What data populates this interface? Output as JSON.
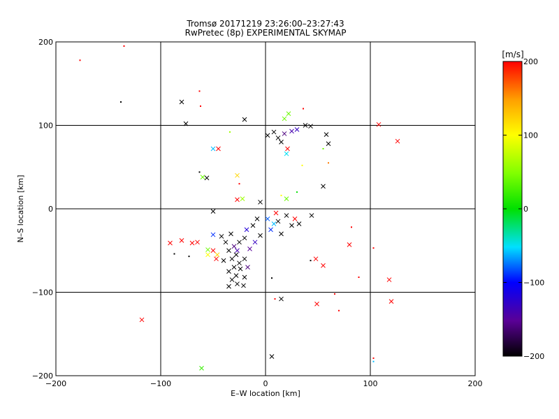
{
  "chart_data": {
    "type": "scatter",
    "title": "Tromsø 20171219 23:26:00–23:27:43",
    "subtitle": "RwPretec (8p) EXPERIMENTAL SKYMAP",
    "xlabel": "E–W location [km]",
    "ylabel": "N–S location [km]",
    "xlim": [
      -200,
      200
    ],
    "ylim": [
      -200,
      200
    ],
    "xticks": [
      -200,
      -100,
      0,
      100,
      200
    ],
    "yticks": [
      -200,
      -100,
      0,
      100,
      200
    ],
    "xtick_labels": [
      "−200",
      "−100",
      "0",
      "100",
      "200"
    ],
    "ytick_labels": [
      "−200",
      "−100",
      "0",
      "100",
      "200"
    ],
    "grid": true,
    "colorbar": {
      "label": "[m/s]",
      "min": -200,
      "max": 200,
      "ticks": [
        200,
        100,
        0,
        -100,
        -200
      ],
      "tick_labels": [
        "200",
        "100",
        "0",
        "−100",
        "−200"
      ],
      "colormap": "black-purple-blue-cyan-green-yellow-red"
    },
    "markers": [
      {
        "x": -177,
        "y": 178,
        "v": 200,
        "m": "dot"
      },
      {
        "x": -135,
        "y": 195,
        "v": 200,
        "m": "dot"
      },
      {
        "x": -138,
        "y": 128,
        "v": -200,
        "m": "dot"
      },
      {
        "x": -80,
        "y": 128,
        "v": -200,
        "m": "x"
      },
      {
        "x": -63,
        "y": 141,
        "v": 200,
        "m": "dot"
      },
      {
        "x": -62,
        "y": 123,
        "v": 200,
        "m": "dot"
      },
      {
        "x": -76,
        "y": 102,
        "v": -200,
        "m": "x"
      },
      {
        "x": -20,
        "y": 107,
        "v": -200,
        "m": "x"
      },
      {
        "x": 22,
        "y": 114,
        "v": 40,
        "m": "x"
      },
      {
        "x": 18,
        "y": 108,
        "v": 40,
        "m": "x"
      },
      {
        "x": 36,
        "y": 120,
        "v": 200,
        "m": "dot"
      },
      {
        "x": 38,
        "y": 100,
        "v": -200,
        "m": "x"
      },
      {
        "x": 43,
        "y": 99,
        "v": -200,
        "m": "x"
      },
      {
        "x": 58,
        "y": 89,
        "v": -200,
        "m": "x"
      },
      {
        "x": 60,
        "y": 78,
        "v": -200,
        "m": "x"
      },
      {
        "x": 108,
        "y": 101,
        "v": 200,
        "m": "x"
      },
      {
        "x": 126,
        "y": 81,
        "v": 200,
        "m": "x"
      },
      {
        "x": -50,
        "y": 72,
        "v": -60,
        "m": "x"
      },
      {
        "x": -45,
        "y": 72,
        "v": 200,
        "m": "x"
      },
      {
        "x": -34,
        "y": 92,
        "v": 60,
        "m": "dot"
      },
      {
        "x": 21,
        "y": 72,
        "v": 200,
        "m": "x"
      },
      {
        "x": 20,
        "y": 66,
        "v": -50,
        "m": "x"
      },
      {
        "x": 55,
        "y": 72,
        "v": 40,
        "m": "dot"
      },
      {
        "x": 60,
        "y": 55,
        "v": 160,
        "m": "dot"
      },
      {
        "x": 35,
        "y": 52,
        "v": 100,
        "m": "dot"
      },
      {
        "x": -63,
        "y": 44,
        "v": -200,
        "m": "dot"
      },
      {
        "x": -60,
        "y": 38,
        "v": 40,
        "m": "x"
      },
      {
        "x": -56,
        "y": 37,
        "v": -200,
        "m": "x"
      },
      {
        "x": -27,
        "y": 40,
        "v": 120,
        "m": "x"
      },
      {
        "x": -25,
        "y": 30,
        "v": 200,
        "m": "dot"
      },
      {
        "x": 55,
        "y": 27,
        "v": -200,
        "m": "x"
      },
      {
        "x": 30,
        "y": 20,
        "v": 0,
        "m": "dot"
      },
      {
        "x": -22,
        "y": 12,
        "v": 60,
        "m": "x"
      },
      {
        "x": -27,
        "y": 11,
        "v": 200,
        "m": "x"
      },
      {
        "x": 20,
        "y": 12,
        "v": 40,
        "m": "x"
      },
      {
        "x": 15,
        "y": 16,
        "v": 100,
        "m": "dot"
      },
      {
        "x": -50,
        "y": -3,
        "v": -200,
        "m": "x"
      },
      {
        "x": -5,
        "y": 8,
        "v": -200,
        "m": "x"
      },
      {
        "x": 44,
        "y": -8,
        "v": -200,
        "m": "x"
      },
      {
        "x": 82,
        "y": -22,
        "v": 200,
        "m": "dot"
      },
      {
        "x": 80,
        "y": -43,
        "v": 200,
        "m": "x"
      },
      {
        "x": 103,
        "y": -47,
        "v": 200,
        "m": "dot"
      },
      {
        "x": -50,
        "y": -31,
        "v": -90,
        "m": "x"
      },
      {
        "x": -91,
        "y": -41,
        "v": 200,
        "m": "x"
      },
      {
        "x": -80,
        "y": -38,
        "v": 200,
        "m": "x"
      },
      {
        "x": -70,
        "y": -41,
        "v": 200,
        "m": "x"
      },
      {
        "x": -65,
        "y": -40,
        "v": 200,
        "m": "x"
      },
      {
        "x": -87,
        "y": -54,
        "v": -200,
        "m": "dot"
      },
      {
        "x": -73,
        "y": -57,
        "v": -200,
        "m": "dot"
      },
      {
        "x": -55,
        "y": -49,
        "v": 40,
        "m": "x"
      },
      {
        "x": -50,
        "y": -50,
        "v": 200,
        "m": "x"
      },
      {
        "x": -55,
        "y": -55,
        "v": 100,
        "m": "x"
      },
      {
        "x": -47,
        "y": -60,
        "v": 200,
        "m": "x"
      },
      {
        "x": -46,
        "y": -55,
        "v": 120,
        "m": "x"
      },
      {
        "x": 48,
        "y": -60,
        "v": 200,
        "m": "x"
      },
      {
        "x": 55,
        "y": -68,
        "v": 200,
        "m": "x"
      },
      {
        "x": 43,
        "y": -62,
        "v": -200,
        "m": "dot"
      },
      {
        "x": 118,
        "y": -85,
        "v": 200,
        "m": "x"
      },
      {
        "x": 89,
        "y": -82,
        "v": 200,
        "m": "dot"
      },
      {
        "x": 6,
        "y": -83,
        "v": -200,
        "m": "dot"
      },
      {
        "x": 120,
        "y": -111,
        "v": 200,
        "m": "x"
      },
      {
        "x": 49,
        "y": -114,
        "v": 200,
        "m": "x"
      },
      {
        "x": 66,
        "y": -102,
        "v": 200,
        "m": "dot"
      },
      {
        "x": 70,
        "y": -122,
        "v": 200,
        "m": "dot"
      },
      {
        "x": 15,
        "y": -108,
        "v": -200,
        "m": "x"
      },
      {
        "x": 9,
        "y": -108,
        "v": 200,
        "m": "dot"
      },
      {
        "x": -118,
        "y": -133,
        "v": 200,
        "m": "x"
      },
      {
        "x": 6,
        "y": -177,
        "v": -200,
        "m": "x"
      },
      {
        "x": 103,
        "y": -179,
        "v": 200,
        "m": "dot"
      },
      {
        "x": 103,
        "y": -183,
        "v": -60,
        "m": "dot"
      },
      {
        "x": -61,
        "y": -191,
        "v": 20,
        "m": "x"
      },
      {
        "x": -25,
        "y": -40,
        "v": -200,
        "m": "x"
      },
      {
        "x": -20,
        "y": -35,
        "v": -200,
        "m": "x"
      },
      {
        "x": -30,
        "y": -45,
        "v": -160,
        "m": "x"
      },
      {
        "x": -38,
        "y": -40,
        "v": -200,
        "m": "x"
      },
      {
        "x": -35,
        "y": -50,
        "v": -200,
        "m": "x"
      },
      {
        "x": -28,
        "y": -55,
        "v": -200,
        "m": "x"
      },
      {
        "x": -32,
        "y": -60,
        "v": -200,
        "m": "x"
      },
      {
        "x": -25,
        "y": -65,
        "v": -200,
        "m": "x"
      },
      {
        "x": -30,
        "y": -70,
        "v": -200,
        "m": "x"
      },
      {
        "x": -35,
        "y": -75,
        "v": -200,
        "m": "x"
      },
      {
        "x": -28,
        "y": -80,
        "v": -200,
        "m": "x"
      },
      {
        "x": -32,
        "y": -85,
        "v": -200,
        "m": "x"
      },
      {
        "x": -27,
        "y": -90,
        "v": -200,
        "m": "x"
      },
      {
        "x": -21,
        "y": -92,
        "v": -200,
        "m": "x"
      },
      {
        "x": -24,
        "y": -72,
        "v": -200,
        "m": "x"
      },
      {
        "x": -20,
        "y": -60,
        "v": -200,
        "m": "x"
      },
      {
        "x": -15,
        "y": -48,
        "v": -150,
        "m": "x"
      },
      {
        "x": -10,
        "y": -40,
        "v": -130,
        "m": "x"
      },
      {
        "x": -5,
        "y": -32,
        "v": -200,
        "m": "x"
      },
      {
        "x": -42,
        "y": -33,
        "v": -200,
        "m": "x"
      },
      {
        "x": -33,
        "y": -30,
        "v": -200,
        "m": "x"
      },
      {
        "x": -18,
        "y": -25,
        "v": -120,
        "m": "x"
      },
      {
        "x": -12,
        "y": -20,
        "v": -200,
        "m": "x"
      },
      {
        "x": -8,
        "y": -12,
        "v": -200,
        "m": "x"
      },
      {
        "x": -35,
        "y": -93,
        "v": -200,
        "m": "x"
      },
      {
        "x": -20,
        "y": -82,
        "v": -200,
        "m": "x"
      },
      {
        "x": -17,
        "y": -70,
        "v": -160,
        "m": "x"
      },
      {
        "x": -40,
        "y": -62,
        "v": -200,
        "m": "x"
      },
      {
        "x": -27,
        "y": -50,
        "v": -140,
        "m": "x"
      },
      {
        "x": 2,
        "y": -12,
        "v": -80,
        "m": "x"
      },
      {
        "x": 8,
        "y": -18,
        "v": -60,
        "m": "x"
      },
      {
        "x": 12,
        "y": -15,
        "v": -200,
        "m": "x"
      },
      {
        "x": 20,
        "y": -8,
        "v": -200,
        "m": "x"
      },
      {
        "x": 25,
        "y": -20,
        "v": -200,
        "m": "x"
      },
      {
        "x": 15,
        "y": -30,
        "v": -200,
        "m": "x"
      },
      {
        "x": 32,
        "y": -18,
        "v": -200,
        "m": "x"
      },
      {
        "x": 5,
        "y": -25,
        "v": -90,
        "m": "x"
      },
      {
        "x": 10,
        "y": -5,
        "v": 200,
        "m": "x"
      },
      {
        "x": 28,
        "y": -12,
        "v": 200,
        "m": "x"
      },
      {
        "x": 2,
        "y": 88,
        "v": -200,
        "m": "x"
      },
      {
        "x": 8,
        "y": 92,
        "v": -200,
        "m": "x"
      },
      {
        "x": 12,
        "y": 85,
        "v": -200,
        "m": "x"
      },
      {
        "x": 18,
        "y": 90,
        "v": -160,
        "m": "x"
      },
      {
        "x": 25,
        "y": 93,
        "v": -140,
        "m": "x"
      },
      {
        "x": 15,
        "y": 80,
        "v": -200,
        "m": "x"
      },
      {
        "x": 30,
        "y": 95,
        "v": -130,
        "m": "x"
      }
    ]
  }
}
